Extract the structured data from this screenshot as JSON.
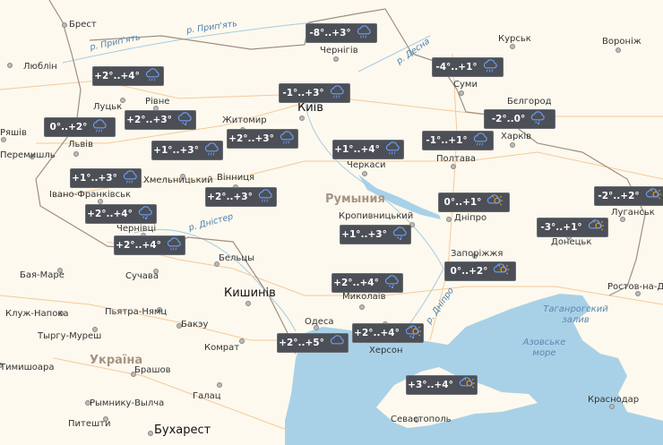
{
  "colors": {
    "land": "#fdf9ee",
    "water": "#a8d1e7",
    "badge": "#4c4f56",
    "rain": "#6b9ef0",
    "sun": "#f2a21c",
    "border": "#9c8f84",
    "road": "#f6c998"
  },
  "countries": [
    {
      "name": "Україна"
    },
    {
      "name": "Румыния"
    }
  ],
  "rivers": [
    {
      "name": "р. Прип'ять"
    },
    {
      "name": "р. Прип'ять"
    },
    {
      "name": "р. Десна"
    },
    {
      "name": "р. Дністер"
    },
    {
      "name": "р. Дніпро"
    }
  ],
  "seas": [
    {
      "name": "Таганрогский залив"
    },
    {
      "name": "Азовське море"
    }
  ],
  "cities": [
    {
      "name": "Брест"
    },
    {
      "name": "Люблін"
    },
    {
      "name": "Луцьк"
    },
    {
      "name": "Рівне"
    },
    {
      "name": "Житомир"
    },
    {
      "name": "Київ",
      "capital": true
    },
    {
      "name": "Чернігів"
    },
    {
      "name": "Курськ"
    },
    {
      "name": "Вороніж"
    },
    {
      "name": "Суми"
    },
    {
      "name": "Бєлгород"
    },
    {
      "name": "Харків"
    },
    {
      "name": "Полтава"
    },
    {
      "name": "Черкаси"
    },
    {
      "name": "Львів"
    },
    {
      "name": "Перемишль"
    },
    {
      "name": "Ряшів"
    },
    {
      "name": "Хмельницький"
    },
    {
      "name": "Вінниця"
    },
    {
      "name": "Івано-Франківськ"
    },
    {
      "name": "Чернівці"
    },
    {
      "name": "Кропивницький"
    },
    {
      "name": "Дніпро"
    },
    {
      "name": "Луганськ"
    },
    {
      "name": "Донецьк"
    },
    {
      "name": "Запоріжжя"
    },
    {
      "name": "Бельцы"
    },
    {
      "name": "Кишинів",
      "capital": true
    },
    {
      "name": "Миколаїв"
    },
    {
      "name": "Одеса"
    },
    {
      "name": "Комрат"
    },
    {
      "name": "Херсон"
    },
    {
      "name": "Бая-Маре"
    },
    {
      "name": "Сучава"
    },
    {
      "name": "Клуж-Напока"
    },
    {
      "name": "Пьятра-Нямц"
    },
    {
      "name": "Бакэу"
    },
    {
      "name": "Тыргу-Муреш"
    },
    {
      "name": "Тимишоара"
    },
    {
      "name": "Брашов"
    },
    {
      "name": "Галац"
    },
    {
      "name": "Рымнику-Вылча"
    },
    {
      "name": "Питешти"
    },
    {
      "name": "Бухарест",
      "capital": true
    },
    {
      "name": "Ростов-на-Дону"
    },
    {
      "name": "Краснодар"
    },
    {
      "name": "Севастополь"
    }
  ],
  "forecasts": [
    {
      "temp": "-8°..+3°",
      "icon": "rain"
    },
    {
      "temp": "+2°..+4°",
      "icon": "rain"
    },
    {
      "temp": "-1°..+3°",
      "icon": "rain"
    },
    {
      "temp": "-4°..+1°",
      "icon": "rain"
    },
    {
      "temp": "+2°..+3°",
      "icon": "sleet"
    },
    {
      "temp": "0°..+2°",
      "icon": "rain"
    },
    {
      "temp": "-2°..0°",
      "icon": "sleet"
    },
    {
      "temp": "+1°..+3°",
      "icon": "rain"
    },
    {
      "temp": "+2°..+3°",
      "icon": "rain"
    },
    {
      "temp": "+1°..+4°",
      "icon": "rain"
    },
    {
      "temp": "-1°..+1°",
      "icon": "rain"
    },
    {
      "temp": "+1°..+3°",
      "icon": "rain"
    },
    {
      "temp": "+2°..+3°",
      "icon": "rain"
    },
    {
      "temp": "0°..+1°",
      "icon": "partly-cloudy"
    },
    {
      "temp": "-2°..+2°",
      "icon": "partly-cloudy"
    },
    {
      "temp": "+2°..+4°",
      "icon": "sleet"
    },
    {
      "temp": "-3°..+1°",
      "icon": "partly-cloudy"
    },
    {
      "temp": "+2°..+4°",
      "icon": "rain"
    },
    {
      "temp": "+1°..+3°",
      "icon": "sleet"
    },
    {
      "temp": "0°..+2°",
      "icon": "partly-cloudy"
    },
    {
      "temp": "+2°..+4°",
      "icon": "sleet"
    },
    {
      "temp": "+2°..+4°",
      "icon": "sleet-sun"
    },
    {
      "temp": "+2°..+5°",
      "icon": "cloud"
    },
    {
      "temp": "+3°..+4°",
      "icon": "partly-cloudy"
    }
  ]
}
